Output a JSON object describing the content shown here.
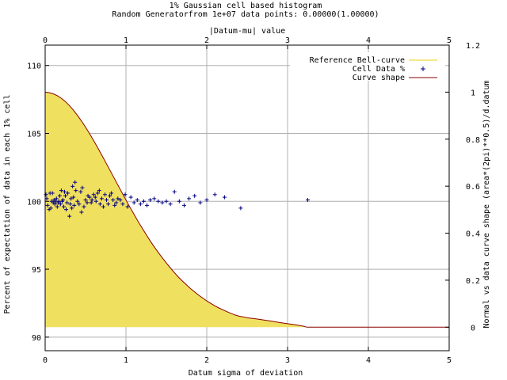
{
  "chart_data": {
    "type": "scatter",
    "title": "1% Gaussian cell based histogram",
    "subtitle": "Random Generatorfrom 1e+07 data points: 0.00000(1.00000)",
    "xlabel": "Datum sigma of deviation",
    "x2label": "|Datum-mu| value",
    "ylabel": "Percent of expectation of data in each 1% cell",
    "y2label": "Normal vs data curve shape (area*(2pi)**0.5)/d.datum",
    "xlim": [
      0,
      5
    ],
    "ylim": [
      89,
      111.5
    ],
    "y2lim": [
      -0.1,
      1.2
    ],
    "xticks": [
      "0",
      "1",
      "2",
      "3",
      "4",
      "5"
    ],
    "yticks": [
      "90",
      "95",
      "100",
      "105",
      "110"
    ],
    "y2ticks": [
      "0",
      "0.2",
      "0.4",
      "0.6",
      "0.8",
      "1",
      "1.2"
    ],
    "grid": true,
    "legend_position": "top-right",
    "legend": [
      {
        "label": "Reference Bell-curve",
        "color": "#f0e060",
        "style": "line"
      },
      {
        "label": "Cell Data %",
        "color": "#000080",
        "style": "plus"
      },
      {
        "label": "Curve shape",
        "color": "#8b0000",
        "style": "line"
      }
    ],
    "series": [
      {
        "name": "Cell Data %",
        "axis": "y",
        "color": "#000080",
        "x": [
          0.01,
          0.02,
          0.03,
          0.05,
          0.06,
          0.07,
          0.08,
          0.09,
          0.1,
          0.11,
          0.12,
          0.13,
          0.14,
          0.15,
          0.16,
          0.17,
          0.18,
          0.19,
          0.2,
          0.21,
          0.22,
          0.23,
          0.24,
          0.25,
          0.26,
          0.27,
          0.28,
          0.3,
          0.31,
          0.32,
          0.33,
          0.34,
          0.35,
          0.36,
          0.37,
          0.38,
          0.4,
          0.42,
          0.44,
          0.45,
          0.46,
          0.48,
          0.5,
          0.52,
          0.53,
          0.55,
          0.57,
          0.58,
          0.6,
          0.62,
          0.63,
          0.65,
          0.67,
          0.68,
          0.7,
          0.72,
          0.74,
          0.76,
          0.78,
          0.8,
          0.82,
          0.84,
          0.86,
          0.88,
          0.9,
          0.93,
          0.96,
          0.99,
          1.02,
          1.06,
          1.1,
          1.14,
          1.18,
          1.22,
          1.26,
          1.3,
          1.35,
          1.4,
          1.45,
          1.5,
          1.55,
          1.6,
          1.66,
          1.72,
          1.78,
          1.85,
          1.92,
          2.0,
          2.1,
          2.22,
          2.42,
          3.25
        ],
        "values": [
          100.5,
          100.2,
          99.7,
          99.4,
          100.6,
          99.5,
          100.0,
          100.6,
          99.9,
          100.1,
          99.8,
          100.0,
          100.2,
          99.6,
          99.9,
          100.0,
          100.4,
          99.8,
          100.8,
          100.0,
          100.1,
          99.6,
          100.7,
          100.4,
          99.4,
          99.9,
          100.6,
          98.9,
          99.8,
          100.2,
          99.5,
          101.1,
          100.3,
          99.7,
          101.4,
          100.8,
          100.0,
          99.8,
          100.7,
          99.2,
          101.0,
          99.6,
          100.1,
          99.9,
          100.4,
          100.3,
          99.9,
          100.1,
          100.5,
          100.3,
          100.0,
          100.6,
          100.8,
          99.8,
          100.2,
          99.6,
          100.5,
          100.1,
          99.8,
          100.4,
          100.6,
          100.1,
          99.7,
          99.9,
          100.2,
          100.1,
          99.8,
          100.5,
          99.6,
          100.3,
          99.9,
          100.1,
          99.8,
          100.0,
          99.7,
          100.1,
          100.2,
          100.0,
          99.9,
          100.0,
          99.8,
          100.7,
          100.0,
          99.7,
          100.2,
          100.4,
          99.9,
          100.1,
          100.5,
          100.3,
          99.5,
          100.1
        ]
      },
      {
        "name": "Curve shape",
        "axis": "y2",
        "color": "#8b0000",
        "x": [
          0,
          0.05,
          0.1,
          0.15,
          0.2,
          0.25,
          0.3,
          0.35,
          0.4,
          0.45,
          0.5,
          0.55,
          0.6,
          0.65,
          0.7,
          0.75,
          0.8,
          0.85,
          0.9,
          0.95,
          1.0,
          1.05,
          1.1,
          1.15,
          1.2,
          1.25,
          1.3,
          1.35,
          1.4,
          1.45,
          1.5,
          1.55,
          1.6,
          1.65,
          1.7,
          1.75,
          1.8,
          1.85,
          1.9,
          1.95,
          2.0,
          2.05,
          2.1,
          2.15,
          2.2,
          2.25,
          2.3,
          2.35,
          2.4,
          2.45,
          2.5,
          2.6,
          2.7,
          2.8,
          2.9,
          3.0,
          3.1,
          3.2,
          3.24,
          3.3,
          3.5,
          4.0,
          4.5,
          5.0
        ],
        "values": [
          1.0,
          0.998,
          0.993,
          0.985,
          0.974,
          0.96,
          0.943,
          0.923,
          0.901,
          0.877,
          0.851,
          0.823,
          0.794,
          0.764,
          0.733,
          0.701,
          0.669,
          0.637,
          0.605,
          0.573,
          0.541,
          0.51,
          0.48,
          0.45,
          0.422,
          0.394,
          0.367,
          0.342,
          0.318,
          0.295,
          0.273,
          0.252,
          0.232,
          0.213,
          0.196,
          0.18,
          0.164,
          0.15,
          0.136,
          0.124,
          0.112,
          0.101,
          0.091,
          0.082,
          0.074,
          0.066,
          0.059,
          0.052,
          0.047,
          0.044,
          0.04,
          0.036,
          0.031,
          0.026,
          0.02,
          0.015,
          0.01,
          0.004,
          0.0,
          0.0,
          0.0,
          0.0,
          0.0,
          0.0
        ]
      },
      {
        "name": "Reference Bell-curve",
        "axis": "y2",
        "color": "#f0e060",
        "fill": true
      }
    ]
  }
}
